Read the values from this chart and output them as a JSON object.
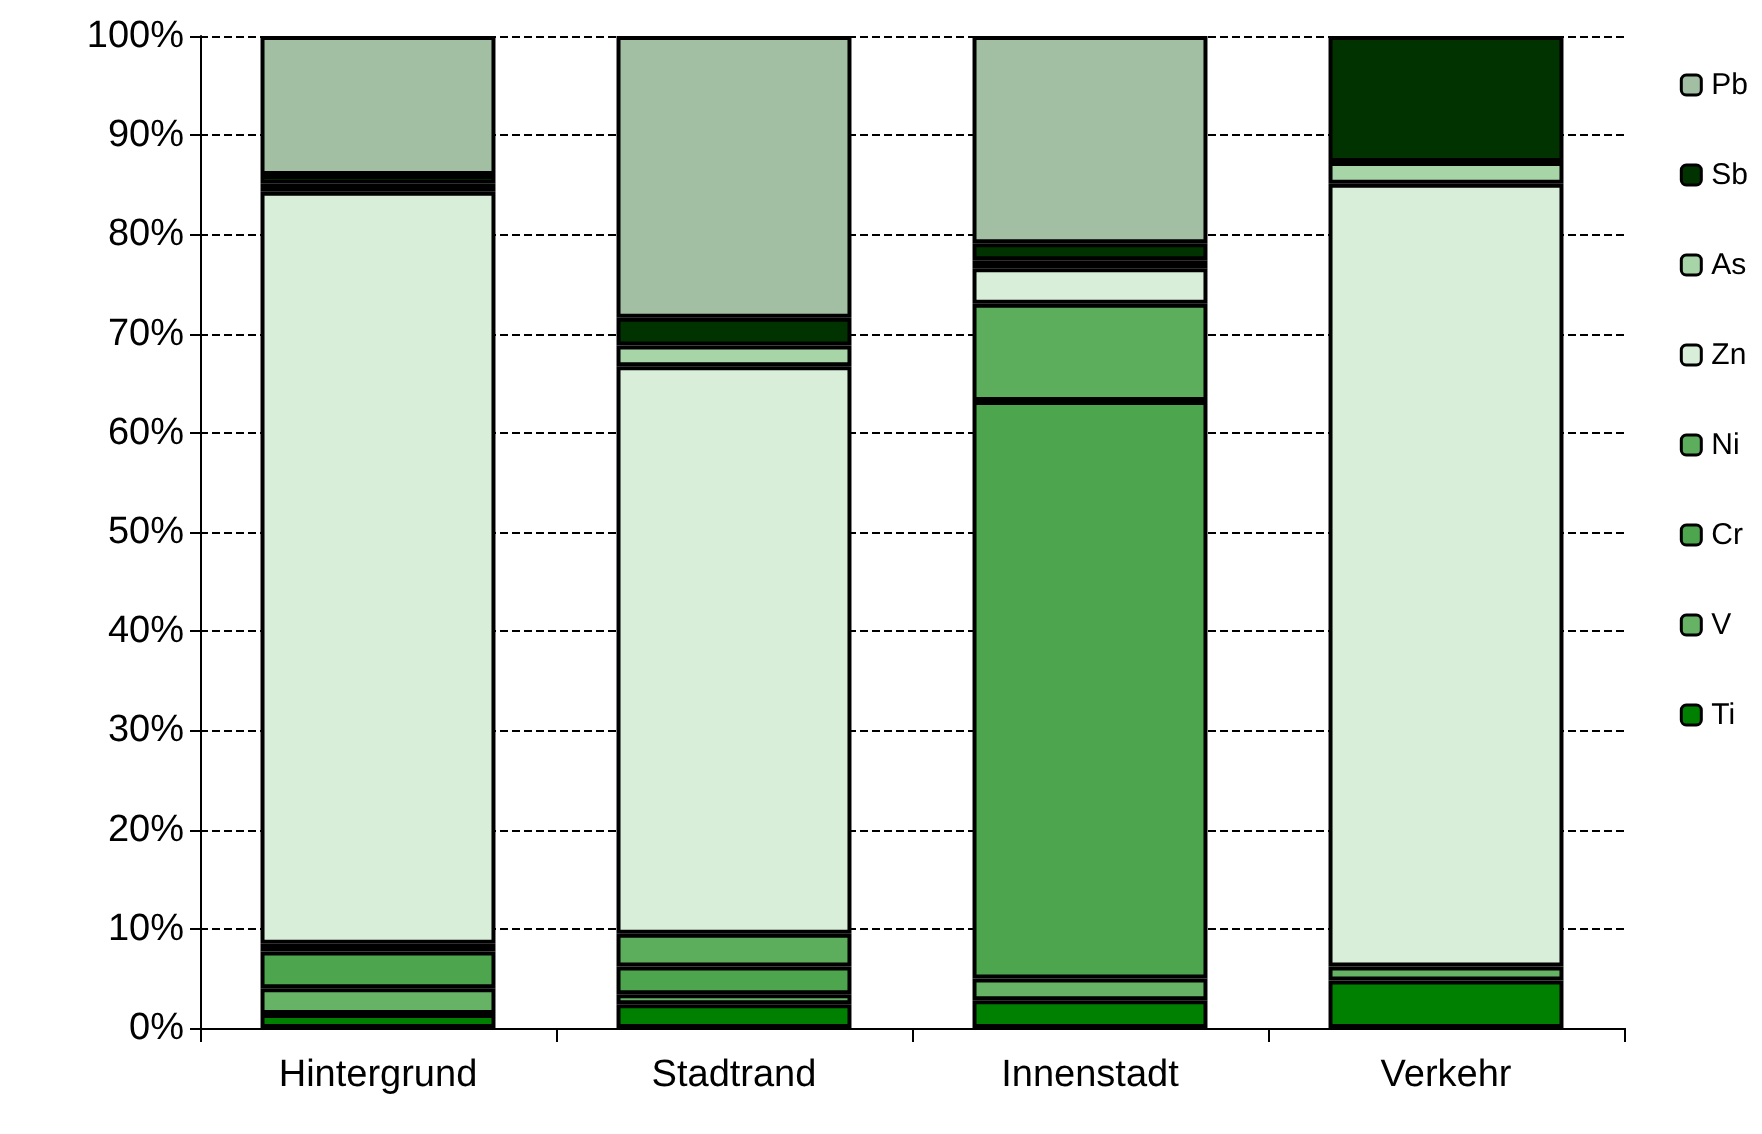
{
  "chart_data": {
    "type": "bar",
    "stacked": true,
    "categories": [
      "Hintergrund",
      "Stadtrand",
      "Innenstadt",
      "Verkehr"
    ],
    "series": [
      {
        "name": "Ti",
        "color": "#008000",
        "values": [
          1.4,
          2.4,
          2.8,
          4.8
        ]
      },
      {
        "name": "V",
        "color": "#66b366",
        "values": [
          2.6,
          1.0,
          2.2,
          1.4
        ]
      },
      {
        "name": "Cr",
        "color": "#4da64d",
        "values": [
          3.7,
          2.8,
          58.2,
          null
        ]
      },
      {
        "name": "Ni",
        "color": "#5cad5c",
        "values": [
          0.8,
          3.3,
          9.8,
          null
        ]
      },
      {
        "name": "Zn",
        "color": "#d9eed9",
        "values": [
          75.8,
          57.2,
          3.6,
          78.9
        ]
      },
      {
        "name": "As",
        "color": "#a8d5a8",
        "values": [
          0.8,
          2.1,
          0.8,
          2.2
        ]
      },
      {
        "name": "Sb",
        "color": "#003300",
        "values": [
          0.9,
          2.8,
          1.7,
          12.7
        ]
      },
      {
        "name": "Pb",
        "color": "#a3bfa3",
        "values": [
          14.0,
          28.4,
          20.9,
          null
        ]
      }
    ],
    "ylim": [
      0,
      100
    ],
    "yticks": [
      {
        "value": 0,
        "label": "0%"
      },
      {
        "value": 10,
        "label": "10%"
      },
      {
        "value": 20,
        "label": "20%"
      },
      {
        "value": 30,
        "label": "30%"
      },
      {
        "value": 40,
        "label": "40%"
      },
      {
        "value": 50,
        "label": "50%"
      },
      {
        "value": 60,
        "label": "60%"
      },
      {
        "value": 70,
        "label": "70%"
      },
      {
        "value": 80,
        "label": "80%"
      },
      {
        "value": 90,
        "label": "90%"
      },
      {
        "value": 100,
        "label": "100%"
      }
    ],
    "grid": "y",
    "legend": "right"
  }
}
